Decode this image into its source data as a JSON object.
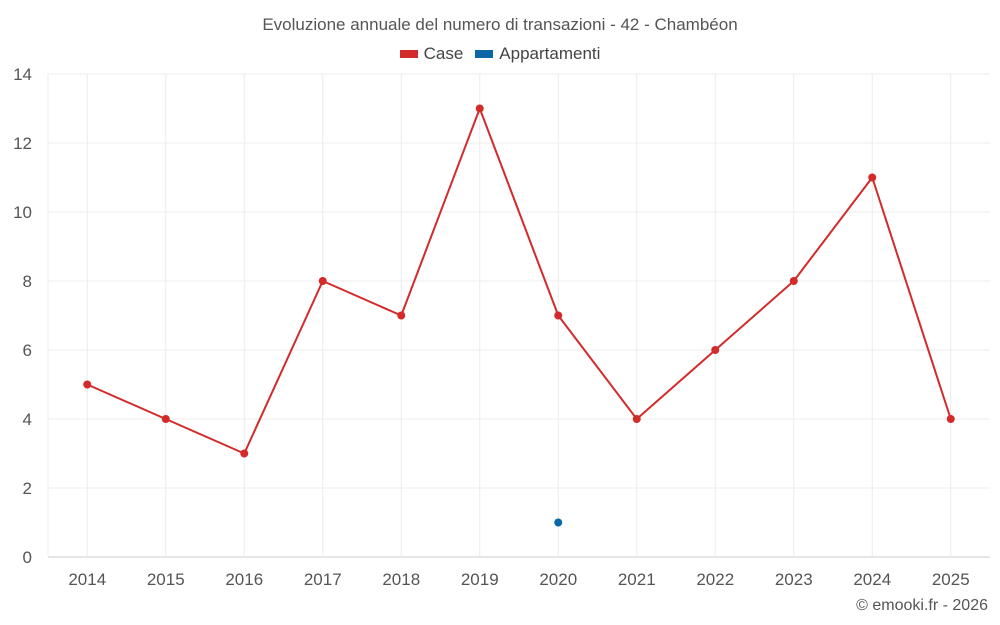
{
  "chart_data": {
    "type": "line",
    "title": "Evoluzione annuale del numero di transazioni - 42 - Chambéon",
    "xlabel": "",
    "ylabel": "",
    "categories": [
      "2014",
      "2015",
      "2016",
      "2017",
      "2018",
      "2019",
      "2020",
      "2021",
      "2022",
      "2023",
      "2024",
      "2025"
    ],
    "ylim": [
      0,
      14
    ],
    "yticks": [
      0,
      2,
      4,
      6,
      8,
      10,
      12,
      14
    ],
    "grid": true,
    "legend_position": "top-center",
    "series": [
      {
        "name": "Case",
        "color": "#d32a2a",
        "values": [
          5,
          4,
          3,
          8,
          7,
          13,
          7,
          4,
          6,
          8,
          11,
          4
        ]
      },
      {
        "name": "Appartamenti",
        "color": "#0b67a6",
        "values": [
          null,
          null,
          null,
          null,
          null,
          null,
          1,
          null,
          null,
          null,
          null,
          null
        ]
      }
    ]
  },
  "credit": "© emooki.fr - 2026"
}
